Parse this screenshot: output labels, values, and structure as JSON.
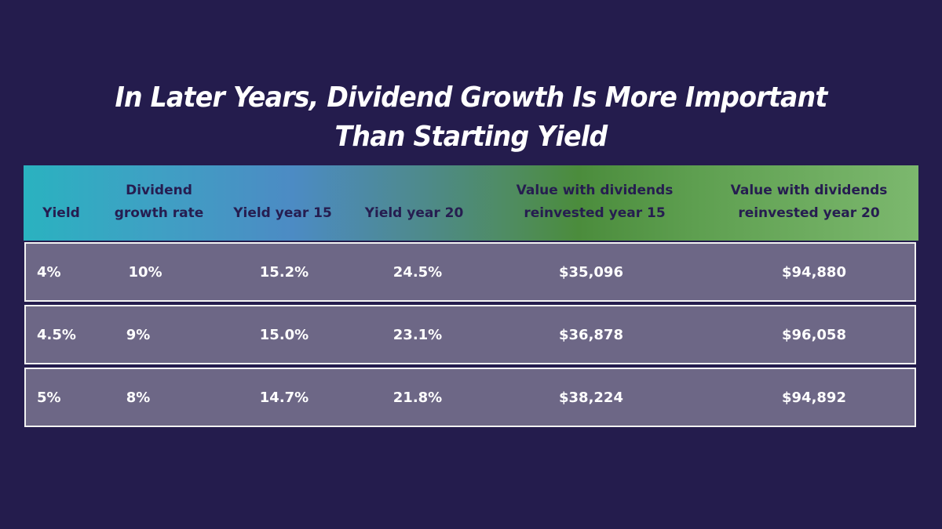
{
  "title": {
    "line1": "In Later Years, Dividend Growth Is More Important",
    "line2": "Than Starting Yield"
  },
  "colors": {
    "background": "#241c4d",
    "header_text": "#261d50",
    "row_fill": "#6d6786",
    "row_border": "#f2f2f2",
    "gradient_start": "#2ab2c0",
    "gradient_mid_blue": "#4c8bc4",
    "gradient_mid_green": "#4b8c3c",
    "gradient_end": "#7cb86e"
  },
  "table": {
    "headers": [
      {
        "line1": "Yield",
        "line2": ""
      },
      {
        "line1": "Dividend",
        "line2": "growth rate"
      },
      {
        "line1": "Yield year 15",
        "line2": ""
      },
      {
        "line1": "Yield year 20",
        "line2": ""
      },
      {
        "line1": "Value with dividends",
        "line2": "reinvested year 15"
      },
      {
        "line1": "Value with dividends",
        "line2": "reinvested year 20"
      }
    ],
    "rows": [
      [
        "4%",
        "10%",
        "15.2%",
        "24.5%",
        "$35,096",
        "$94,880"
      ],
      [
        "4.5%",
        "9%",
        "15.0%",
        "23.1%",
        "$36,878",
        "$96,058"
      ],
      [
        "5%",
        "8%",
        "14.7%",
        "21.8%",
        "$38,224",
        "$94,892"
      ]
    ]
  }
}
